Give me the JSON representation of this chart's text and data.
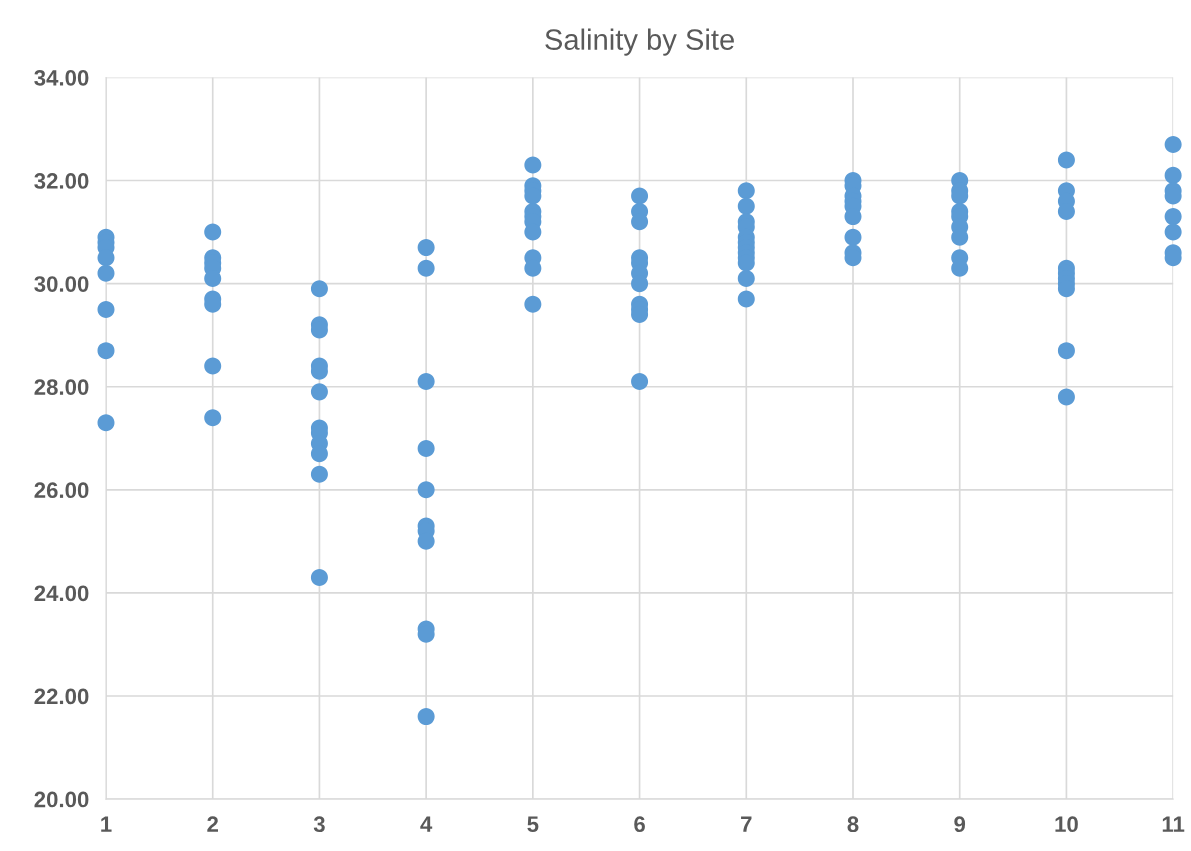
{
  "chart_data": {
    "type": "scatter",
    "title": "Salinity by Site",
    "x": [
      1,
      1,
      1,
      1,
      1,
      1,
      1,
      1,
      2,
      2,
      2,
      2,
      2,
      2,
      2,
      2,
      2,
      3,
      3,
      3,
      3,
      3,
      3,
      3,
      3,
      3,
      3,
      3,
      3,
      4,
      4,
      4,
      4,
      4,
      4,
      4,
      4,
      4,
      4,
      4,
      5,
      5,
      5,
      5,
      5,
      5,
      5,
      5,
      5,
      5,
      5,
      6,
      6,
      6,
      6,
      6,
      6,
      6,
      6,
      6,
      6,
      6,
      7,
      7,
      7,
      7,
      7,
      7,
      7,
      7,
      7,
      7,
      7,
      7,
      8,
      8,
      8,
      8,
      8,
      8,
      8,
      8,
      8,
      9,
      9,
      9,
      9,
      9,
      9,
      9,
      9,
      9,
      10,
      10,
      10,
      10,
      10,
      10,
      10,
      10,
      10,
      10,
      10,
      11,
      11,
      11,
      11,
      11,
      11,
      11,
      11
    ],
    "values": [
      30.9,
      30.8,
      30.7,
      30.5,
      30.2,
      29.5,
      28.7,
      27.3,
      31.0,
      30.5,
      30.4,
      30.3,
      30.1,
      29.7,
      29.6,
      28.4,
      27.4,
      29.9,
      29.2,
      29.1,
      28.4,
      28.3,
      27.9,
      27.2,
      27.1,
      26.9,
      26.7,
      26.3,
      24.3,
      30.7,
      30.3,
      28.1,
      26.8,
      26.0,
      25.3,
      25.2,
      25.0,
      23.3,
      23.2,
      21.6,
      32.3,
      31.9,
      31.8,
      31.7,
      31.4,
      31.3,
      31.2,
      31.0,
      30.5,
      30.3,
      29.6,
      31.7,
      31.4,
      31.2,
      30.5,
      30.4,
      30.2,
      30.0,
      29.6,
      29.5,
      29.4,
      28.1,
      31.8,
      31.5,
      31.2,
      31.1,
      30.9,
      30.8,
      30.7,
      30.6,
      30.5,
      30.4,
      30.1,
      29.7,
      32.0,
      31.9,
      31.7,
      31.6,
      31.5,
      31.3,
      30.9,
      30.6,
      30.5,
      32.0,
      31.8,
      31.7,
      31.4,
      31.3,
      31.1,
      30.9,
      30.5,
      30.3,
      32.4,
      31.8,
      31.6,
      31.4,
      30.3,
      30.2,
      30.1,
      30.0,
      29.9,
      28.7,
      27.8,
      32.7,
      32.1,
      31.8,
      31.7,
      31.3,
      31.0,
      30.6,
      30.5
    ],
    "color": "#5b9bd5",
    "marker": "circle",
    "xlim": [
      1,
      11
    ],
    "xticks": [
      1,
      2,
      3,
      4,
      5,
      6,
      7,
      8,
      9,
      10,
      11
    ],
    "ylim": [
      20,
      34
    ],
    "yticks": [
      {
        "value": 20,
        "label": "20.00"
      },
      {
        "value": 22,
        "label": "22.00"
      },
      {
        "value": 24,
        "label": "24.00"
      },
      {
        "value": 26,
        "label": "26.00"
      },
      {
        "value": 28,
        "label": "28.00"
      },
      {
        "value": 30,
        "label": "30.00"
      },
      {
        "value": 32,
        "label": "32.00"
      },
      {
        "value": 34,
        "label": "34.00"
      }
    ],
    "grid": true
  }
}
